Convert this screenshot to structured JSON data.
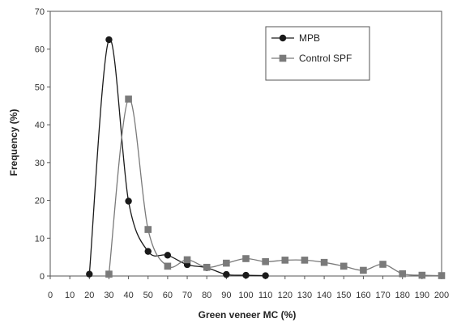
{
  "chart_data": {
    "type": "line",
    "title": "",
    "xlabel": "Green veneer MC (%)",
    "ylabel": "Frequency (%)",
    "xlim": [
      0,
      200
    ],
    "ylim": [
      0,
      70
    ],
    "xticks": [
      0,
      10,
      20,
      30,
      40,
      50,
      60,
      70,
      80,
      90,
      100,
      110,
      120,
      130,
      140,
      150,
      160,
      170,
      180,
      190,
      200
    ],
    "yticks": [
      0,
      10,
      20,
      30,
      40,
      50,
      60,
      70
    ],
    "grid": false,
    "smooth": true,
    "legend_position": "top-right",
    "series": [
      {
        "name": "MPB",
        "marker": "circle",
        "color": "#1a1a1a",
        "x": [
          20,
          30,
          40,
          50,
          60,
          70,
          80,
          90,
          100,
          110
        ],
        "y": [
          0.5,
          62.5,
          19.8,
          6.5,
          5.5,
          3.0,
          2.2,
          0.4,
          0.2,
          0.1
        ]
      },
      {
        "name": "Control SPF",
        "marker": "square",
        "color": "#7a7a7a",
        "x": [
          30,
          40,
          50,
          60,
          70,
          80,
          90,
          100,
          110,
          120,
          130,
          140,
          150,
          160,
          170,
          180,
          190,
          200
        ],
        "y": [
          0.5,
          46.8,
          12.3,
          2.6,
          4.3,
          2.3,
          3.4,
          4.6,
          3.8,
          4.2,
          4.2,
          3.6,
          2.6,
          1.5,
          3.1,
          0.6,
          0.2,
          0.1
        ]
      }
    ]
  }
}
